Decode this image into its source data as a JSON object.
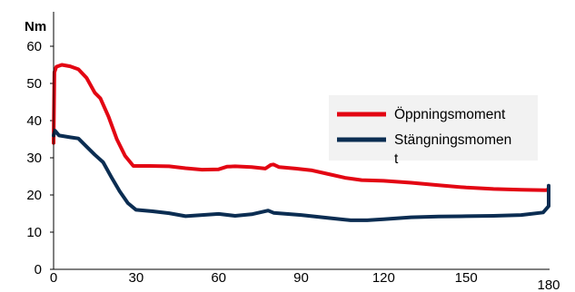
{
  "chart_data": {
    "type": "line",
    "unit_label": "Nm",
    "xlim": [
      0,
      180
    ],
    "ylim": [
      0,
      60
    ],
    "x_ticks": [
      0,
      30,
      60,
      90,
      120,
      150,
      180
    ],
    "y_ticks": [
      0,
      10,
      20,
      30,
      40,
      50,
      60
    ],
    "grid": false,
    "legend_position": "right",
    "series": [
      {
        "name": "Öppningsmoment",
        "color": "#e30613",
        "points": [
          [
            0,
            34
          ],
          [
            0.3,
            53
          ],
          [
            1,
            54.5
          ],
          [
            3,
            55
          ],
          [
            6,
            54.6
          ],
          [
            9,
            53.8
          ],
          [
            12,
            51.5
          ],
          [
            15,
            47.5
          ],
          [
            17,
            46
          ],
          [
            20,
            41
          ],
          [
            23,
            35
          ],
          [
            26,
            30.5
          ],
          [
            29,
            27.8
          ],
          [
            35,
            27.8
          ],
          [
            42,
            27.7
          ],
          [
            48,
            27.2
          ],
          [
            54,
            26.8
          ],
          [
            60,
            26.9
          ],
          [
            63,
            27.6
          ],
          [
            66,
            27.7
          ],
          [
            72,
            27.5
          ],
          [
            77,
            27.1
          ],
          [
            79,
            28.1
          ],
          [
            80,
            28.2
          ],
          [
            82,
            27.5
          ],
          [
            88,
            27.1
          ],
          [
            94,
            26.6
          ],
          [
            100,
            25.6
          ],
          [
            106,
            24.6
          ],
          [
            112,
            24
          ],
          [
            120,
            23.8
          ],
          [
            130,
            23.3
          ],
          [
            140,
            22.6
          ],
          [
            150,
            22
          ],
          [
            160,
            21.6
          ],
          [
            170,
            21.4
          ],
          [
            179,
            21.3
          ],
          [
            180,
            21.5
          ]
        ]
      },
      {
        "name": "Stängningsmoment",
        "color": "#0b2d52",
        "points": [
          [
            0,
            36
          ],
          [
            0.5,
            37.3
          ],
          [
            2,
            36
          ],
          [
            6,
            35.5
          ],
          [
            9,
            35.2
          ],
          [
            12,
            33
          ],
          [
            15,
            30.8
          ],
          [
            18,
            28.8
          ],
          [
            21,
            24.8
          ],
          [
            24,
            21
          ],
          [
            27,
            17.8
          ],
          [
            30,
            16
          ],
          [
            36,
            15.6
          ],
          [
            42,
            15.1
          ],
          [
            48,
            14.3
          ],
          [
            54,
            14.6
          ],
          [
            60,
            14.9
          ],
          [
            66,
            14.4
          ],
          [
            72,
            14.8
          ],
          [
            78,
            15.8
          ],
          [
            80,
            15.2
          ],
          [
            90,
            14.6
          ],
          [
            100,
            13.8
          ],
          [
            108,
            13.2
          ],
          [
            114,
            13.2
          ],
          [
            120,
            13.5
          ],
          [
            130,
            14
          ],
          [
            140,
            14.2
          ],
          [
            150,
            14.3
          ],
          [
            160,
            14.4
          ],
          [
            170,
            14.6
          ],
          [
            178,
            15.3
          ],
          [
            180,
            17
          ],
          [
            180,
            22.5
          ]
        ]
      }
    ]
  }
}
